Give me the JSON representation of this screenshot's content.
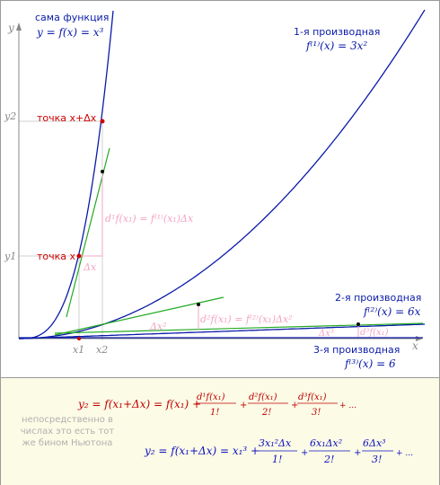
{
  "labels": {
    "axis_x": "x",
    "axis_y": "y",
    "y1": "y1",
    "y2": "y2",
    "x1": "x1",
    "x2": "x2",
    "func_title": "сама функция",
    "func_formula": "y = f(x) = x³",
    "d1_title": "1-я производная",
    "d1_formula": "f⁽¹⁾(x) = 3x²",
    "d2_title": "2-я производная",
    "d2_formula": "f⁽²⁾(x) = 6x",
    "d3_title": "3-я производная",
    "d3_formula": "f⁽³⁾(x) = 6",
    "point_x": "точка x",
    "point_x_dx": "точка x+Δx",
    "dx": "Δx",
    "dx2": "Δx²",
    "dx3": "Δx³",
    "d1_diff": "d¹f(x₁) = f⁽¹⁾(x₁)Δx",
    "d2_diff": "d²f(x₁) = f⁽²⁾(x₁)Δx²",
    "d3_diff": "d³f(x₁)"
  },
  "note": "непосредственно в числах это есть тот же бином Ньютона",
  "formula1": {
    "lhs": "y₂ = f(x₁+Δx) = f(x₁) +",
    "t1_num": "d¹f(x₁)",
    "t1_den": "1!",
    "t2_num": "d²f(x₁)",
    "t2_den": "2!",
    "t3_num": "d³f(x₁)",
    "t3_den": "3!",
    "plus": "+",
    "tail": "+ ..."
  },
  "formula2": {
    "lhs": "y₂ = f(x₁+Δx) = x₁³ +",
    "t1_num": "3x₁²Δx",
    "t1_den": "1!",
    "t2_num": "6x₁Δx²",
    "t2_den": "2!",
    "t3_num": "6Δx³",
    "t3_den": "3!",
    "plus": "+",
    "tail": "+ ..."
  },
  "colors": {
    "curve": "#0a1aa8",
    "tangent": "#22aa22",
    "point": "#d00000",
    "point_dot": "#000000",
    "pink": "#f2a4c4",
    "grey": "#9a9a9a",
    "formula_red": "#c00000",
    "formula_blue": "#1010c0"
  }
}
